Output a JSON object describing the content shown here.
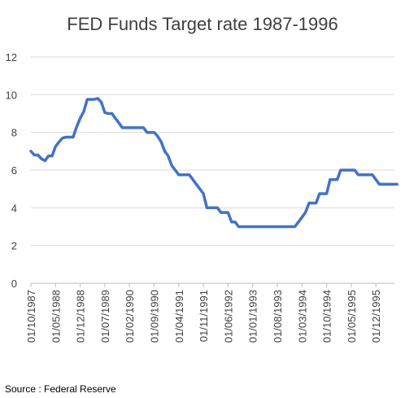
{
  "chart_data": {
    "type": "line",
    "title": "FED Funds Target rate 1987-1996",
    "xlabel": "",
    "ylabel": "",
    "ylim": [
      0,
      12
    ],
    "yticks": [
      0,
      2,
      4,
      6,
      8,
      10,
      12
    ],
    "grid": true,
    "legend": "none",
    "line_color": "#4472C4",
    "x_tick_labels": [
      "01/10/1987",
      "01/05/1988",
      "01/12/1988",
      "01/07/1989",
      "01/02/1990",
      "01/09/1990",
      "01/04/1991",
      "01/11/1991",
      "01/06/1992",
      "01/01/1993",
      "01/08/1993",
      "01/03/1994",
      "01/10/1994",
      "01/05/1995",
      "01/12/1995"
    ],
    "series": [
      {
        "points": [
          [
            "1987-10",
            7.0
          ],
          [
            "1987-11",
            6.8
          ],
          [
            "1987-12",
            6.8
          ],
          [
            "1988-01",
            6.6
          ],
          [
            "1988-02",
            6.5
          ],
          [
            "1988-03",
            6.75
          ],
          [
            "1988-04",
            6.75
          ],
          [
            "1988-05",
            7.25
          ],
          [
            "1988-06",
            7.5
          ],
          [
            "1988-07",
            7.7
          ],
          [
            "1988-08",
            7.75
          ],
          [
            "1988-09",
            7.75
          ],
          [
            "1988-10",
            7.75
          ],
          [
            "1988-11",
            8.3
          ],
          [
            "1988-12",
            8.75
          ],
          [
            "1989-01",
            9.1
          ],
          [
            "1989-02",
            9.75
          ],
          [
            "1989-03",
            9.75
          ],
          [
            "1989-04",
            9.75
          ],
          [
            "1989-05",
            9.8
          ],
          [
            "1989-06",
            9.6
          ],
          [
            "1989-07",
            9.05
          ],
          [
            "1989-08",
            9.0
          ],
          [
            "1989-09",
            9.0
          ],
          [
            "1989-10",
            8.75
          ],
          [
            "1989-11",
            8.5
          ],
          [
            "1989-12",
            8.25
          ],
          [
            "1990-01",
            8.25
          ],
          [
            "1990-02",
            8.25
          ],
          [
            "1990-03",
            8.25
          ],
          [
            "1990-04",
            8.25
          ],
          [
            "1990-05",
            8.25
          ],
          [
            "1990-06",
            8.25
          ],
          [
            "1990-07",
            8.0
          ],
          [
            "1990-08",
            8.0
          ],
          [
            "1990-09",
            8.0
          ],
          [
            "1990-10",
            7.8
          ],
          [
            "1990-11",
            7.5
          ],
          [
            "1990-12",
            7.0
          ],
          [
            "1991-01",
            6.75
          ],
          [
            "1991-02",
            6.25
          ],
          [
            "1991-03",
            6.0
          ],
          [
            "1991-04",
            5.75
          ],
          [
            "1991-05",
            5.75
          ],
          [
            "1991-06",
            5.75
          ],
          [
            "1991-07",
            5.75
          ],
          [
            "1991-08",
            5.5
          ],
          [
            "1991-09",
            5.25
          ],
          [
            "1991-10",
            5.0
          ],
          [
            "1991-11",
            4.75
          ],
          [
            "1991-12",
            4.0
          ],
          [
            "1992-01",
            4.0
          ],
          [
            "1992-02",
            4.0
          ],
          [
            "1992-03",
            4.0
          ],
          [
            "1992-04",
            3.75
          ],
          [
            "1992-05",
            3.75
          ],
          [
            "1992-06",
            3.75
          ],
          [
            "1992-07",
            3.25
          ],
          [
            "1992-08",
            3.25
          ],
          [
            "1992-09",
            3.0
          ],
          [
            "1992-10",
            3.0
          ],
          [
            "1992-11",
            3.0
          ],
          [
            "1992-12",
            3.0
          ],
          [
            "1993-01",
            3.0
          ],
          [
            "1993-02",
            3.0
          ],
          [
            "1993-03",
            3.0
          ],
          [
            "1993-04",
            3.0
          ],
          [
            "1993-05",
            3.0
          ],
          [
            "1993-06",
            3.0
          ],
          [
            "1993-07",
            3.0
          ],
          [
            "1993-08",
            3.0
          ],
          [
            "1993-09",
            3.0
          ],
          [
            "1993-10",
            3.0
          ],
          [
            "1993-11",
            3.0
          ],
          [
            "1993-12",
            3.0
          ],
          [
            "1994-01",
            3.0
          ],
          [
            "1994-02",
            3.25
          ],
          [
            "1994-03",
            3.5
          ],
          [
            "1994-04",
            3.75
          ],
          [
            "1994-05",
            4.25
          ],
          [
            "1994-06",
            4.25
          ],
          [
            "1994-07",
            4.25
          ],
          [
            "1994-08",
            4.75
          ],
          [
            "1994-09",
            4.75
          ],
          [
            "1994-10",
            4.75
          ],
          [
            "1994-11",
            5.5
          ],
          [
            "1994-12",
            5.5
          ],
          [
            "1995-01",
            5.5
          ],
          [
            "1995-02",
            6.0
          ],
          [
            "1995-03",
            6.0
          ],
          [
            "1995-04",
            6.0
          ],
          [
            "1995-05",
            6.0
          ],
          [
            "1995-06",
            6.0
          ],
          [
            "1995-07",
            5.75
          ],
          [
            "1995-08",
            5.75
          ],
          [
            "1995-09",
            5.75
          ],
          [
            "1995-10",
            5.75
          ],
          [
            "1995-11",
            5.75
          ],
          [
            "1995-12",
            5.5
          ],
          [
            "1996-01",
            5.25
          ],
          [
            "1996-02",
            5.25
          ],
          [
            "1996-03",
            5.25
          ],
          [
            "1996-04",
            5.25
          ],
          [
            "1996-05",
            5.25
          ],
          [
            "1996-06",
            5.25
          ]
        ]
      }
    ]
  },
  "source_note": "Source : Federal Reserve"
}
